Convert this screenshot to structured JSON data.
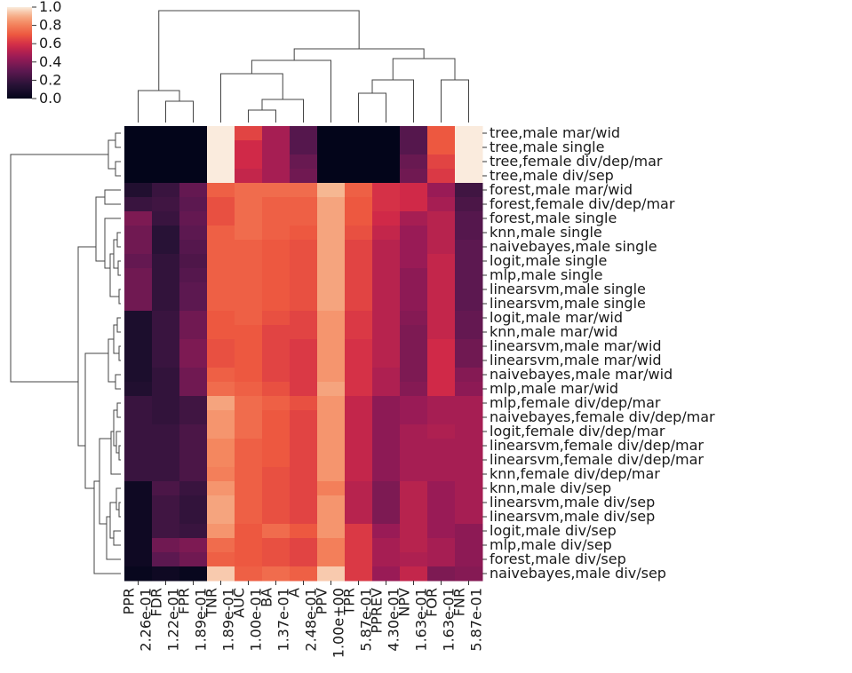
{
  "chart_data": {
    "type": "heatmap",
    "colormap": "rocket",
    "colorbar": {
      "ticks": [
        "0.0",
        "0.2",
        "0.4",
        "0.6",
        "0.8",
        "1.0"
      ],
      "range": [
        0,
        1
      ],
      "placement": "top-left"
    },
    "columns": [
      "PPR\n2.26e-01",
      "FDR\n1.22e-01",
      "FPR\n1.89e-01",
      "TNR\n1.89e-01",
      "AUC\n1.00e-01",
      "BA\n1.37e-01",
      "A\n2.48e-01",
      "PPV\n1.00e+00",
      "TPR\n5.87e-01",
      "PPREV\n4.30e-01",
      "NPV\n1.63e-01",
      "FOR\n1.63e-01",
      "FNR\n5.87e-01"
    ],
    "rows": [
      "tree,male mar/wid",
      "tree,male single",
      "tree,female div/dep/mar",
      "tree,male div/sep",
      "forest,male mar/wid",
      "forest,female div/dep/mar",
      "forest,male single",
      "knn,male single",
      "naivebayes,male single",
      "logit,male single",
      "mlp,male single",
      "linearsvm,male single",
      "linearsvm,male single",
      "logit,male mar/wid",
      "knn,male mar/wid",
      "linearsvm,male mar/wid",
      "linearsvm,male mar/wid",
      "naivebayes,male mar/wid",
      "mlp,male mar/wid",
      "mlp,female div/dep/mar",
      "naivebayes,female div/dep/mar",
      "logit,female div/dep/mar",
      "linearsvm,female div/dep/mar",
      "linearsvm,female div/dep/mar",
      "knn,female div/dep/mar",
      "knn,male div/sep",
      "linearsvm,male div/sep",
      "linearsvm,male div/sep",
      "logit,male div/sep",
      "mlp,male div/sep",
      "forest,male div/sep",
      "naivebayes,male div/sep"
    ],
    "values": [
      [
        0.0,
        0.0,
        0.0,
        1.0,
        0.65,
        0.48,
        0.28,
        0.0,
        0.0,
        0.0,
        0.28,
        0.7,
        1.0
      ],
      [
        0.0,
        0.0,
        0.0,
        1.0,
        0.58,
        0.48,
        0.28,
        0.0,
        0.0,
        0.0,
        0.28,
        0.7,
        1.0
      ],
      [
        0.0,
        0.0,
        0.0,
        1.0,
        0.58,
        0.48,
        0.33,
        0.0,
        0.0,
        0.0,
        0.33,
        0.65,
        1.0
      ],
      [
        0.0,
        0.0,
        0.0,
        1.0,
        0.55,
        0.48,
        0.35,
        0.0,
        0.0,
        0.0,
        0.35,
        0.62,
        1.0
      ],
      [
        0.12,
        0.2,
        0.32,
        0.72,
        0.75,
        0.75,
        0.75,
        0.92,
        0.72,
        0.6,
        0.58,
        0.45,
        0.22
      ],
      [
        0.2,
        0.22,
        0.3,
        0.68,
        0.75,
        0.72,
        0.72,
        0.88,
        0.7,
        0.6,
        0.58,
        0.48,
        0.25
      ],
      [
        0.38,
        0.2,
        0.32,
        0.68,
        0.75,
        0.72,
        0.72,
        0.88,
        0.7,
        0.58,
        0.48,
        0.52,
        0.28
      ],
      [
        0.35,
        0.15,
        0.3,
        0.72,
        0.75,
        0.72,
        0.7,
        0.88,
        0.68,
        0.55,
        0.45,
        0.52,
        0.28
      ],
      [
        0.35,
        0.15,
        0.28,
        0.72,
        0.72,
        0.7,
        0.68,
        0.88,
        0.65,
        0.52,
        0.45,
        0.52,
        0.3
      ],
      [
        0.32,
        0.18,
        0.26,
        0.72,
        0.72,
        0.7,
        0.68,
        0.88,
        0.65,
        0.52,
        0.45,
        0.55,
        0.3
      ],
      [
        0.35,
        0.18,
        0.28,
        0.72,
        0.72,
        0.7,
        0.68,
        0.88,
        0.65,
        0.52,
        0.42,
        0.55,
        0.3
      ],
      [
        0.35,
        0.18,
        0.3,
        0.72,
        0.72,
        0.7,
        0.68,
        0.88,
        0.65,
        0.52,
        0.42,
        0.55,
        0.3
      ],
      [
        0.35,
        0.18,
        0.3,
        0.72,
        0.72,
        0.7,
        0.68,
        0.88,
        0.65,
        0.52,
        0.42,
        0.55,
        0.3
      ],
      [
        0.1,
        0.2,
        0.35,
        0.7,
        0.72,
        0.68,
        0.65,
        0.85,
        0.62,
        0.52,
        0.4,
        0.55,
        0.32
      ],
      [
        0.1,
        0.2,
        0.35,
        0.7,
        0.7,
        0.65,
        0.65,
        0.85,
        0.62,
        0.52,
        0.38,
        0.55,
        0.32
      ],
      [
        0.1,
        0.2,
        0.38,
        0.68,
        0.7,
        0.65,
        0.62,
        0.85,
        0.6,
        0.52,
        0.38,
        0.58,
        0.35
      ],
      [
        0.1,
        0.2,
        0.38,
        0.68,
        0.7,
        0.65,
        0.62,
        0.85,
        0.6,
        0.52,
        0.38,
        0.58,
        0.35
      ],
      [
        0.1,
        0.18,
        0.35,
        0.72,
        0.7,
        0.65,
        0.62,
        0.85,
        0.6,
        0.5,
        0.38,
        0.58,
        0.4
      ],
      [
        0.12,
        0.18,
        0.35,
        0.75,
        0.72,
        0.68,
        0.62,
        0.88,
        0.6,
        0.5,
        0.4,
        0.58,
        0.42
      ],
      [
        0.2,
        0.18,
        0.22,
        0.88,
        0.75,
        0.72,
        0.68,
        0.85,
        0.55,
        0.42,
        0.45,
        0.48,
        0.48
      ],
      [
        0.2,
        0.18,
        0.22,
        0.85,
        0.75,
        0.7,
        0.65,
        0.85,
        0.55,
        0.42,
        0.45,
        0.48,
        0.48
      ],
      [
        0.2,
        0.2,
        0.25,
        0.85,
        0.75,
        0.7,
        0.65,
        0.85,
        0.55,
        0.42,
        0.48,
        0.5,
        0.48
      ],
      [
        0.2,
        0.2,
        0.25,
        0.82,
        0.72,
        0.7,
        0.65,
        0.85,
        0.55,
        0.42,
        0.48,
        0.48,
        0.48
      ],
      [
        0.2,
        0.2,
        0.25,
        0.82,
        0.72,
        0.7,
        0.65,
        0.85,
        0.55,
        0.42,
        0.48,
        0.48,
        0.48
      ],
      [
        0.2,
        0.2,
        0.25,
        0.8,
        0.72,
        0.68,
        0.65,
        0.85,
        0.55,
        0.42,
        0.48,
        0.48,
        0.48
      ],
      [
        0.05,
        0.25,
        0.2,
        0.85,
        0.72,
        0.68,
        0.65,
        0.8,
        0.52,
        0.38,
        0.52,
        0.45,
        0.48
      ],
      [
        0.05,
        0.22,
        0.18,
        0.88,
        0.72,
        0.68,
        0.65,
        0.85,
        0.52,
        0.38,
        0.52,
        0.45,
        0.48
      ],
      [
        0.05,
        0.22,
        0.18,
        0.88,
        0.72,
        0.68,
        0.65,
        0.85,
        0.52,
        0.38,
        0.52,
        0.45,
        0.48
      ],
      [
        0.05,
        0.22,
        0.2,
        0.85,
        0.7,
        0.75,
        0.7,
        0.85,
        0.62,
        0.45,
        0.52,
        0.45,
        0.42
      ],
      [
        0.05,
        0.35,
        0.38,
        0.75,
        0.7,
        0.68,
        0.65,
        0.8,
        0.62,
        0.48,
        0.52,
        0.48,
        0.42
      ],
      [
        0.05,
        0.3,
        0.35,
        0.72,
        0.7,
        0.68,
        0.65,
        0.8,
        0.62,
        0.48,
        0.5,
        0.48,
        0.42
      ],
      [
        0.02,
        0.05,
        0.02,
        0.95,
        0.72,
        0.75,
        0.72,
        0.95,
        0.62,
        0.45,
        0.55,
        0.38,
        0.4
      ]
    ],
    "row_dendrogram": "clustered",
    "column_dendrogram": "clustered"
  }
}
